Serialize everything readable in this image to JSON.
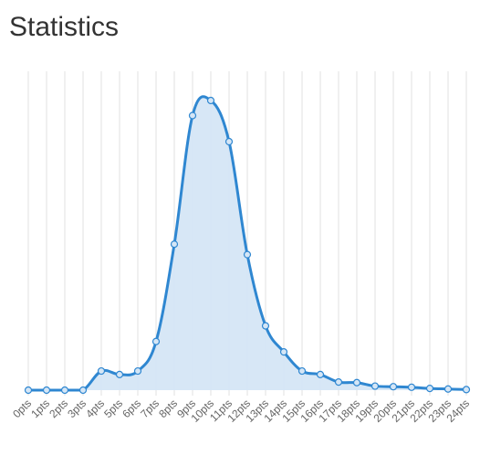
{
  "page": {
    "title": "Statistics"
  },
  "chart_data": {
    "type": "area",
    "categories": [
      "0pts",
      "1pts",
      "2pts",
      "3pts",
      "4pts",
      "5pts",
      "6pts",
      "7pts",
      "8pts",
      "9pts",
      "10pts",
      "11pts",
      "12pts",
      "13pts",
      "14pts",
      "15pts",
      "16pts",
      "17pts",
      "18pts",
      "19pts",
      "20pts",
      "21pts",
      "22pts",
      "23pts",
      "24pts"
    ],
    "series": [
      {
        "values": [
          0,
          0,
          0,
          0,
          6.6,
          5.4,
          6.6,
          16.8,
          50.4,
          94.8,
          100,
          85.8,
          46.8,
          22.2,
          13.2,
          6.6,
          5.4,
          2.8,
          2.6,
          1.4,
          1.2,
          1.0,
          0.6,
          0.4,
          0.2
        ]
      }
    ],
    "ylim": [
      0,
      100
    ],
    "grid": "vertical",
    "legend": "none",
    "colors": {
      "line": "#2f87d1",
      "fill": "#d5e6f6",
      "grid": "#e0e0e0"
    }
  }
}
